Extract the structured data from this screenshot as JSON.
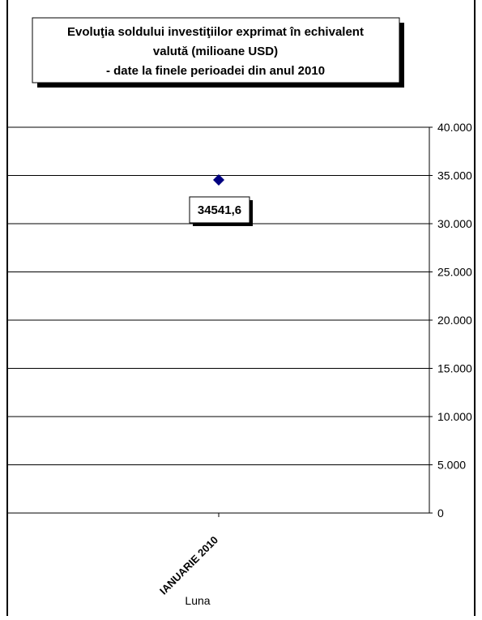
{
  "chart_data": {
    "type": "scatter",
    "title_lines": [
      "Evoluţia soldului investiţiilor exprimat în echivalent",
      "valută (milioane USD)",
      "- date la finele perioadei din anul 2010"
    ],
    "categories": [
      "IANUARIE 2010"
    ],
    "series": [
      {
        "values": [
          34541.6
        ],
        "color": "#000080",
        "marker": "diamond"
      }
    ],
    "data_labels": [
      "34541,6"
    ],
    "xlabel": "Luna",
    "ylabel": "",
    "ylim": [
      0,
      40000
    ],
    "yticks": [
      0,
      5000,
      10000,
      15000,
      20000,
      25000,
      30000,
      35000,
      40000
    ],
    "ytick_labels": [
      "0",
      "5.000",
      "10.000",
      "15.000",
      "20.000",
      "25.000",
      "30.000",
      "35.000",
      "40.000"
    ],
    "y_axis_side": "right",
    "grid": true
  }
}
